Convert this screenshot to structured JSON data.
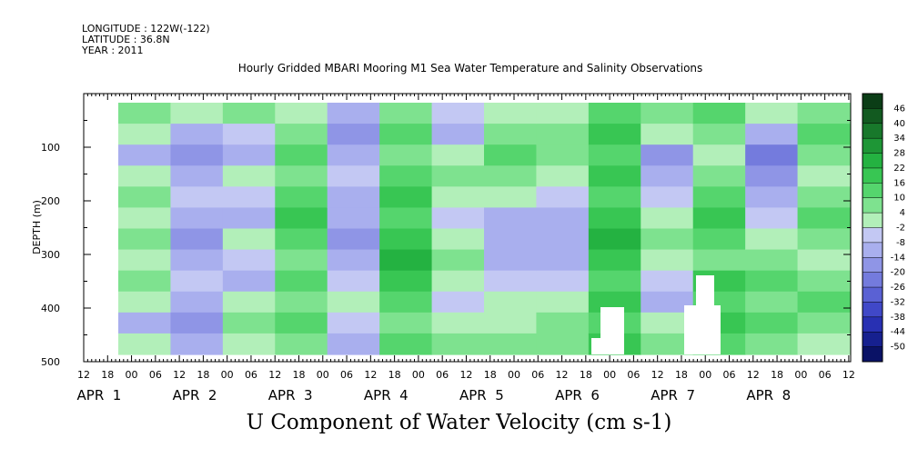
{
  "header": {
    "longitude": "LONGITUDE : 122W(-122)",
    "latitude": "LATITUDE : 36.8N",
    "year": "YEAR : 2011"
  },
  "chart_data": {
    "type": "heatmap",
    "title": "Hourly Gridded MBARI Mooring M1 Sea Water Temperature and Salinity Observations",
    "variable_title": "U Component of Water Velocity (cm s-1)",
    "ylabel": "DEPTH (m)",
    "y_ticks": [
      100,
      200,
      300,
      400,
      500
    ],
    "ylim": [
      500,
      0
    ],
    "x_hour_ticks": [
      "12",
      "18",
      "00",
      "06",
      "12",
      "18",
      "00",
      "06",
      "12",
      "18",
      "00",
      "06",
      "12",
      "18",
      "00",
      "06",
      "12",
      "18",
      "00",
      "06",
      "12",
      "18",
      "00",
      "06",
      "12",
      "18",
      "00",
      "06",
      "12",
      "18",
      "00",
      "06",
      "12"
    ],
    "x_day_labels": [
      "APR  1",
      "APR  2",
      "APR  3",
      "APR  4",
      "APR  5",
      "APR  6",
      "APR  7",
      "APR  8"
    ],
    "colorbar_levels": [
      48,
      46,
      40,
      34,
      28,
      22,
      16,
      10,
      4,
      -2,
      -8,
      -14,
      -20,
      -26,
      -32,
      -38,
      -44,
      -50
    ],
    "colorbar_labels": [
      "46",
      "40",
      "34",
      "28",
      "22",
      "16",
      "10",
      "4",
      "-2",
      "-8",
      "-14",
      "-20",
      "-26",
      "-32",
      "-38",
      "-44",
      "-50"
    ],
    "colorbar_colors": [
      "#0b3d16",
      "#125a20",
      "#18782b",
      "#1e9636",
      "#24b241",
      "#38c653",
      "#55d56d",
      "#7ee28f",
      "#b2efb9",
      "#c3c8f3",
      "#a9afee",
      "#8f95e6",
      "#747bdd",
      "#5a61d4",
      "#4048c8",
      "#2830b3",
      "#16208f",
      "#0a1266"
    ],
    "data_start_hour": 12,
    "columns": [
      {
        "label": "Apr 1 18h",
        "values": [
          10,
          4,
          -8,
          4,
          10,
          4,
          10,
          4,
          10,
          4,
          -8,
          4
        ]
      },
      {
        "label": "Apr 2 06h",
        "values": [
          4,
          -8,
          -14,
          -8,
          -2,
          -8,
          -14,
          -8,
          -2,
          -8,
          -14,
          -8
        ]
      },
      {
        "label": "Apr 2 18h",
        "values": [
          10,
          -2,
          -8,
          4,
          -2,
          -8,
          4,
          -2,
          -8,
          4,
          10,
          4
        ]
      },
      {
        "label": "Apr 3 06h",
        "values": [
          4,
          10,
          16,
          10,
          16,
          22,
          16,
          10,
          16,
          10,
          16,
          10
        ]
      },
      {
        "label": "Apr 3 18h",
        "values": [
          -8,
          -14,
          -8,
          -2,
          -8,
          -8,
          -14,
          -8,
          -2,
          4,
          -2,
          -8
        ]
      },
      {
        "label": "Apr 4 06h",
        "values": [
          10,
          16,
          10,
          16,
          22,
          16,
          22,
          28,
          22,
          16,
          10,
          16
        ]
      },
      {
        "label": "Apr 4 18h",
        "values": [
          -2,
          -8,
          4,
          10,
          4,
          -2,
          4,
          10,
          4,
          -2,
          4,
          10
        ]
      },
      {
        "label": "Apr 5 06h",
        "values": [
          4,
          10,
          16,
          10,
          4,
          -8,
          -8,
          -8,
          -2,
          4,
          4,
          10
        ]
      },
      {
        "label": "Apr 5 18h",
        "values": [
          4,
          10,
          10,
          4,
          -2,
          -8,
          -8,
          -8,
          -2,
          4,
          10,
          10
        ]
      },
      {
        "label": "Apr 6 06h",
        "values": [
          16,
          22,
          16,
          22,
          16,
          22,
          28,
          22,
          16,
          22,
          16,
          22
        ]
      },
      {
        "label": "Apr 6 18h",
        "values": [
          10,
          4,
          -14,
          -8,
          -2,
          4,
          10,
          4,
          -2,
          -8,
          4,
          10
        ]
      },
      {
        "label": "Apr 7 06h",
        "values": [
          16,
          10,
          4,
          10,
          16,
          22,
          16,
          10,
          22,
          16,
          22,
          16
        ]
      },
      {
        "label": "Apr 7 18h",
        "values": [
          4,
          -8,
          -20,
          -14,
          -8,
          -2,
          4,
          10,
          16,
          10,
          16,
          10
        ]
      },
      {
        "label": "Apr 8 06h",
        "values": [
          10,
          16,
          10,
          4,
          10,
          16,
          10,
          4,
          10,
          16,
          10,
          4
        ]
      }
    ]
  }
}
